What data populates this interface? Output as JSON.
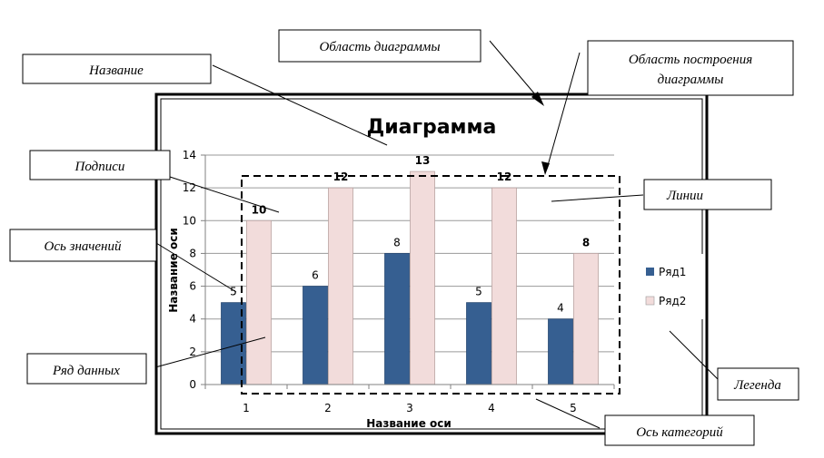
{
  "chart_data": {
    "type": "bar",
    "title": "Диаграмма",
    "xlabel": "Название оси",
    "ylabel": "Название оси",
    "categories": [
      "1",
      "2",
      "3",
      "4",
      "5"
    ],
    "ylim": [
      0,
      14
    ],
    "yticks": [
      "0",
      "2",
      "4",
      "6",
      "8",
      "10",
      "12",
      "14"
    ],
    "grid": true,
    "legend_position": "right",
    "series": [
      {
        "name": "Ряд1",
        "values": [
          5,
          6,
          8,
          5,
          4
        ],
        "color": "#365F91"
      },
      {
        "name": "Ряд2",
        "values": [
          10,
          12,
          13,
          12,
          8
        ],
        "color": "#F2DCDB"
      }
    ]
  },
  "callouts": {
    "chart_area": "Область диаграммы",
    "title": "Название",
    "plot_area_line1": "Область построения",
    "plot_area_line2": "диаграммы",
    "data_labels": "Подписи",
    "gridlines": "Линии",
    "value_axis": "Ось значений",
    "data_series": "Ряд данных",
    "legend": "Легенда",
    "category_axis": "Ось категорий"
  }
}
